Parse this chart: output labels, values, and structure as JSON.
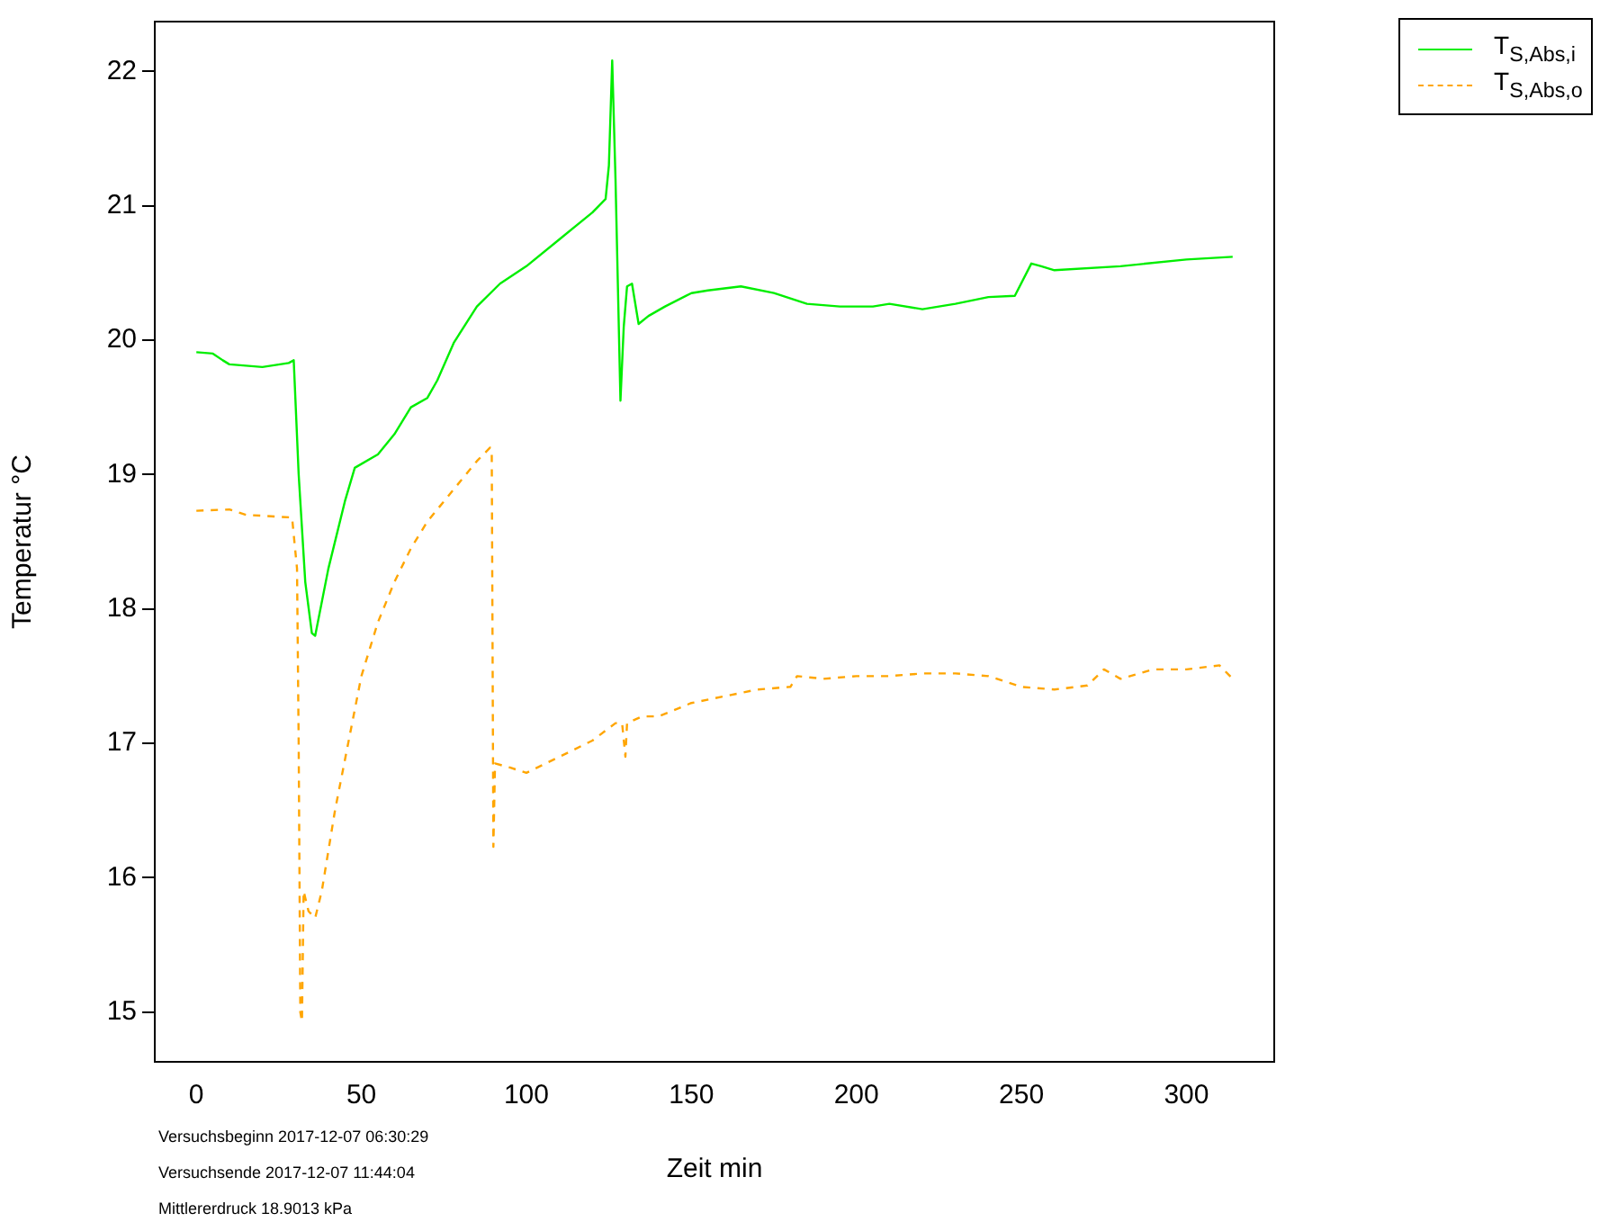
{
  "chart_data": {
    "type": "line",
    "xlabel": "Zeit min",
    "ylabel": "Temperatur °C",
    "xlim": [
      -12.6,
      326.6
    ],
    "ylim": [
      14.63,
      22.37
    ],
    "xticks": [
      0,
      50,
      100,
      150,
      200,
      250,
      300
    ],
    "yticks": [
      15,
      16,
      17,
      18,
      19,
      20,
      21,
      22
    ],
    "legend": "top right",
    "annotations": [
      "Versuchsbeginn 2017-12-07 06:30:29",
      "Versuchsende 2017-12-07 11:44:04",
      "Mittlererdruck 18.9013 kPa"
    ],
    "series": [
      {
        "name": "T$_{S,Abs,i}$",
        "color": "#00ee00",
        "line_style": "solid",
        "x": [
          0,
          5,
          8,
          10,
          20,
          28,
          29.5,
          31,
          33,
          35,
          36,
          40,
          45,
          48,
          55,
          60,
          65,
          70,
          73,
          78,
          85,
          92,
          100,
          110,
          120,
          124,
          125,
          126,
          127,
          128.5,
          129.5,
          130.5,
          132,
          134,
          137,
          142,
          150,
          155,
          165,
          175,
          185,
          195,
          205,
          210,
          220,
          230,
          240,
          248,
          253,
          256,
          260,
          280,
          300,
          314
        ],
        "values": [
          19.91,
          19.9,
          19.85,
          19.82,
          19.8,
          19.83,
          19.85,
          19.0,
          18.2,
          17.82,
          17.8,
          18.3,
          18.8,
          19.05,
          19.15,
          19.3,
          19.5,
          19.57,
          19.7,
          19.98,
          20.25,
          20.42,
          20.55,
          20.75,
          20.95,
          21.05,
          21.3,
          22.08,
          21.2,
          19.55,
          20.1,
          20.4,
          20.42,
          20.12,
          20.18,
          20.25,
          20.35,
          20.37,
          20.4,
          20.35,
          20.27,
          20.25,
          20.25,
          20.27,
          20.23,
          20.27,
          20.32,
          20.33,
          20.57,
          20.55,
          20.52,
          20.55,
          20.6,
          20.62
        ]
      },
      {
        "name": "T$_{S,Abs,o}$",
        "color": "#ffa500",
        "line_style": "dashed",
        "x": [
          0,
          10,
          15,
          29,
          30.5,
          31,
          31.5,
          32,
          32.5,
          34,
          36,
          38,
          42,
          46,
          50,
          55,
          60,
          65,
          70,
          75,
          80,
          85,
          89,
          89.5,
          90,
          90.5,
          95,
          100,
          110,
          120,
          127,
          129,
          130,
          130.5,
          135,
          140,
          150,
          160,
          170,
          180,
          182,
          190,
          200,
          210,
          220,
          230,
          240,
          250,
          260,
          270,
          275,
          280,
          290,
          300,
          310,
          314
        ],
        "values": [
          18.73,
          18.74,
          18.7,
          18.68,
          18.3,
          17.0,
          15.0,
          14.93,
          15.9,
          15.75,
          15.7,
          15.9,
          16.5,
          17.0,
          17.5,
          17.9,
          18.2,
          18.45,
          18.65,
          18.8,
          18.95,
          19.1,
          19.2,
          19.18,
          16.23,
          16.85,
          16.82,
          16.78,
          16.9,
          17.02,
          17.15,
          17.15,
          16.9,
          17.15,
          17.2,
          17.2,
          17.3,
          17.35,
          17.4,
          17.42,
          17.5,
          17.48,
          17.5,
          17.5,
          17.52,
          17.52,
          17.5,
          17.42,
          17.4,
          17.43,
          17.55,
          17.48,
          17.55,
          17.55,
          17.58,
          17.48
        ]
      }
    ]
  }
}
